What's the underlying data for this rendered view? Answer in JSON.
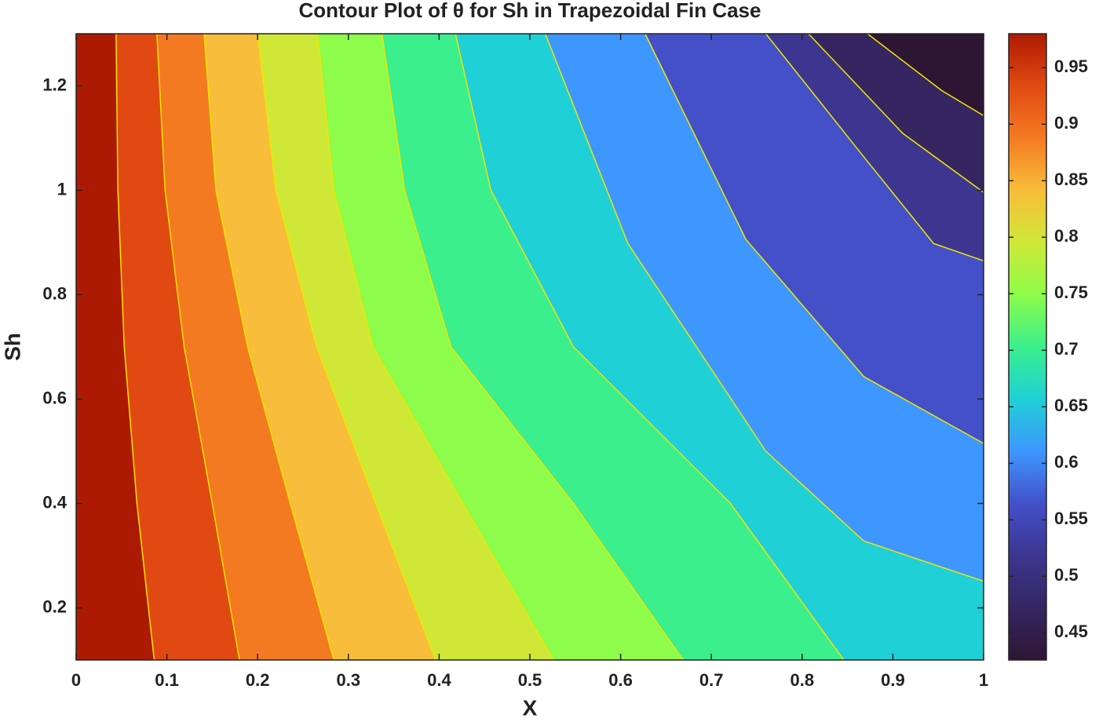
{
  "chart_data": {
    "type": "contour",
    "title": "Contour Plot of θ for Sh in Trapezoidal Fin Case",
    "x_label": "X",
    "y_label": "Sh",
    "xlim": [
      0,
      1
    ],
    "ylim": [
      0.1,
      1.3
    ],
    "xticks": [
      0,
      0.1,
      0.2,
      0.3,
      0.4,
      0.5,
      0.6,
      0.7,
      0.8,
      0.9,
      1
    ],
    "yticks": [
      0.2,
      0.4,
      0.6,
      0.8,
      1,
      1.2
    ],
    "band_colors": [
      "#ad1a03",
      "#e04a12",
      "#f47a22",
      "#f8bd3a",
      "#cfe838",
      "#8dfc4a",
      "#3bef8c",
      "#1fd0d6",
      "#3e97fe",
      "#4350c8",
      "#3c3690",
      "#352662",
      "#2d1634"
    ],
    "line_color": "#f2e600",
    "contours": [
      {
        "x": [
          0.086,
          0.067,
          0.053,
          0.046,
          0.044
        ],
        "y": [
          0.1,
          0.4,
          0.7,
          1.0,
          1.3
        ]
      },
      {
        "x": [
          0.18,
          0.15,
          0.119,
          0.098,
          0.089
        ],
        "y": [
          0.1,
          0.4,
          0.7,
          1.0,
          1.3
        ]
      },
      {
        "x": [
          0.284,
          0.236,
          0.189,
          0.154,
          0.141
        ],
        "y": [
          0.1,
          0.4,
          0.7,
          1.0,
          1.3
        ]
      },
      {
        "x": [
          0.396,
          0.33,
          0.265,
          0.22,
          0.2
        ],
        "y": [
          0.1,
          0.4,
          0.7,
          1.0,
          1.3
        ]
      },
      {
        "x": [
          0.526,
          0.426,
          0.327,
          0.284,
          0.266
        ],
        "y": [
          0.1,
          0.4,
          0.7,
          1.0,
          1.3
        ]
      },
      {
        "x": [
          0.669,
          0.548,
          0.413,
          0.362,
          0.337
        ],
        "y": [
          0.1,
          0.4,
          0.7,
          1.0,
          1.3
        ]
      },
      {
        "x": [
          0.846,
          0.721,
          0.548,
          0.457,
          0.418
        ],
        "y": [
          0.1,
          0.4,
          0.7,
          1.0,
          1.3
        ]
      },
      {
        "x": [
          1,
          0.868,
          0.76,
          0.608,
          0.517
        ],
        "y": [
          0.251,
          0.328,
          0.5,
          0.898,
          1.3
        ]
      },
      {
        "x": [
          1,
          0.868,
          0.738,
          0.627
        ],
        "y": [
          0.515,
          0.643,
          0.906,
          1.3
        ]
      },
      {
        "x": [
          1,
          0.945,
          0.868,
          0.76
        ],
        "y": [
          0.865,
          0.898,
          1.064,
          1.3
        ]
      },
      {
        "x": [
          1,
          0.911,
          0.807
        ],
        "y": [
          0.996,
          1.109,
          1.3
        ]
      },
      {
        "x": [
          1,
          0.954,
          0.872
        ],
        "y": [
          1.143,
          1.191,
          1.3
        ]
      }
    ],
    "colorbar": {
      "lim": [
        0.426,
        0.98
      ],
      "ticks": [
        0.45,
        0.5,
        0.55,
        0.6,
        0.65,
        0.7,
        0.75,
        0.8,
        0.85,
        0.9,
        0.95
      ]
    }
  }
}
